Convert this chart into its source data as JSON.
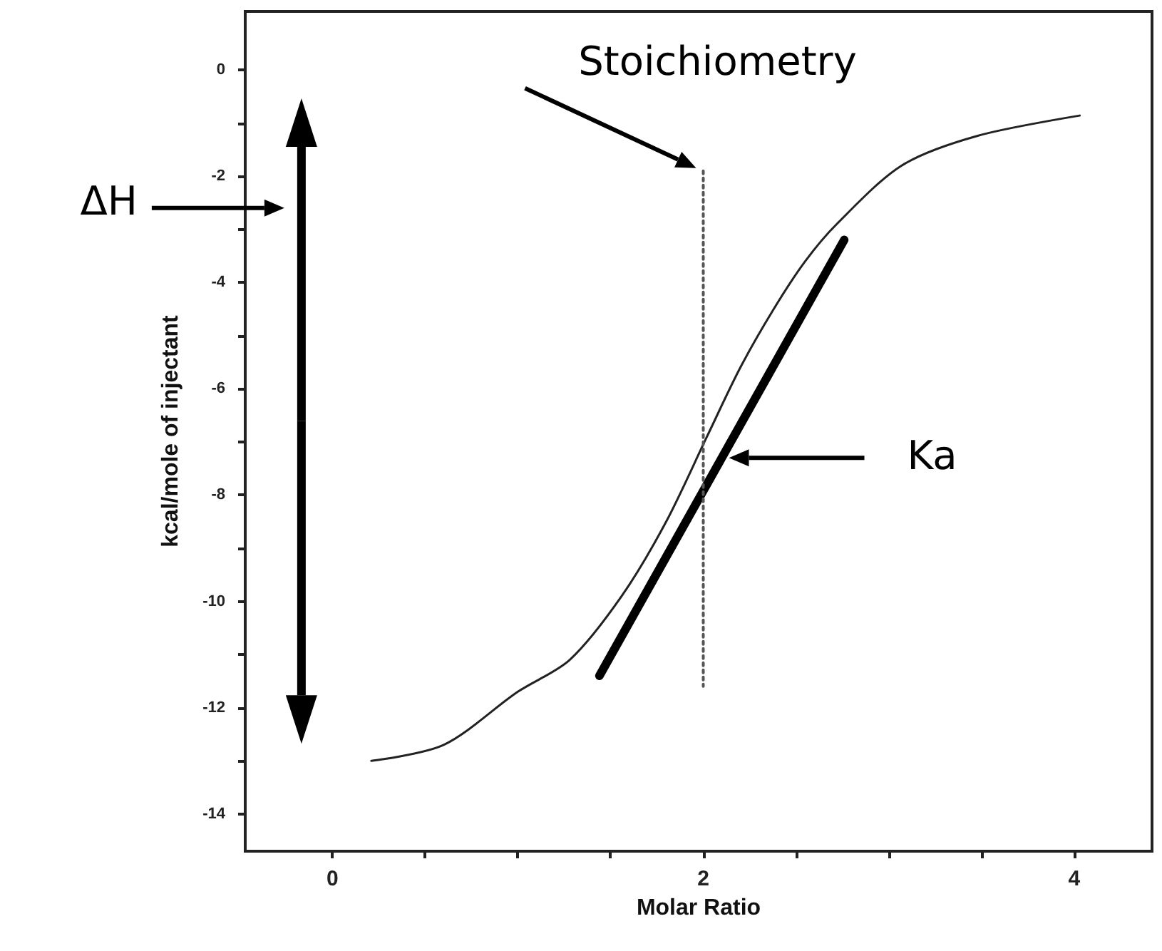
{
  "chart_data": {
    "type": "line",
    "xlabel": "Molar Ratio",
    "ylabel": "kcal/mole of injectant",
    "xlim": [
      -0.47,
      4.42
    ],
    "ylim": [
      -14.7,
      1.1
    ],
    "xticks": [
      0,
      {
        "value": 0.5,
        "label": null
      },
      {
        "value": 1,
        "label": null
      },
      {
        "value": 1.5,
        "label": null
      },
      2,
      {
        "value": 2.5,
        "label": null
      },
      {
        "value": 3,
        "label": null
      },
      {
        "value": 3.5,
        "label": null
      },
      4
    ],
    "yticks": [
      0,
      {
        "value": -1,
        "label": null
      },
      -2,
      {
        "value": -3,
        "label": null
      },
      -4,
      {
        "value": -5,
        "label": null
      },
      -6,
      {
        "value": -7,
        "label": null
      },
      -8,
      {
        "value": -9,
        "label": null
      },
      -10,
      {
        "value": -11,
        "label": null
      },
      -12,
      {
        "value": -13,
        "label": null
      },
      -14
    ],
    "grid": false,
    "marker": "none",
    "series": [
      {
        "color": "#222222",
        "line_style": "solid",
        "x": [
          0.21,
          0.6,
          1.0,
          1.28,
          1.56,
          1.8,
          2.02,
          2.2,
          2.38,
          2.55,
          2.72,
          3.07,
          3.48,
          4.03
        ],
        "values": [
          -13.0,
          -12.7,
          -11.7,
          -11.1,
          -9.9,
          -8.5,
          -6.9,
          -5.6,
          -4.5,
          -3.6,
          -2.9,
          -1.8,
          -1.24,
          -0.86
        ]
      },
      {
        "color": "#000000",
        "line_style": "solid",
        "x": [
          1.44,
          2.76
        ],
        "values": [
          -11.4,
          -3.2
        ]
      },
      {
        "color": "#555555",
        "line_style": "dotted",
        "x": [
          2.0,
          2.0
        ],
        "values": [
          -1.9,
          -11.6
        ]
      }
    ],
    "annotations": [
      {
        "text": "Stoichiometry",
        "x": 2.0,
        "y": -1.9
      },
      "ΔH",
      "Ka"
    ]
  }
}
